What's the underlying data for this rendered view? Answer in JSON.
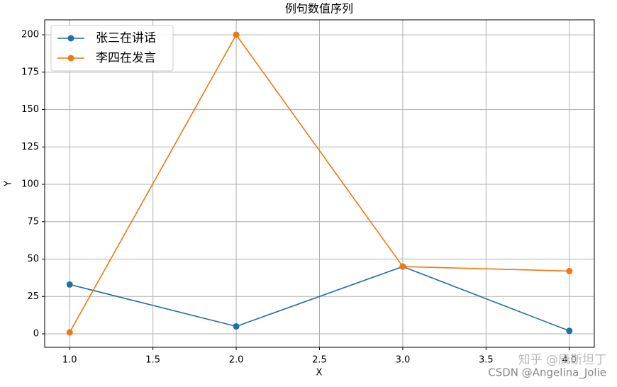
{
  "chart_data": {
    "type": "line",
    "title": "例句数值序列",
    "x_label": "X",
    "y_label": "Y",
    "x": [
      1,
      2,
      3,
      4
    ],
    "series": [
      {
        "name": "张三在讲话",
        "color": "#1f6fa8",
        "values": [
          33,
          5,
          45,
          2
        ]
      },
      {
        "name": "李四在发言",
        "color": "#ef7714",
        "values": [
          1,
          200,
          45,
          42
        ]
      }
    ],
    "xlim": [
      0.85,
      4.15
    ],
    "xticks": [
      {
        "value": 1,
        "label": "1.0"
      },
      {
        "value": 1.5,
        "label": "1.5"
      },
      {
        "value": 2,
        "label": "2.0"
      },
      {
        "value": 2.5,
        "label": "2.5"
      },
      {
        "value": 3,
        "label": "3.0"
      },
      {
        "value": 3.5,
        "label": "3.5"
      },
      {
        "value": 4,
        "label": "4.0"
      }
    ],
    "ylim": [
      -9,
      210
    ],
    "yticks": [
      0,
      25,
      50,
      75,
      100,
      125,
      150,
      175,
      200
    ],
    "grid": true,
    "legend": "upper-left",
    "annotations": [
      "知乎 @康斯坦丁",
      "CSDN @Angelina_Jolie"
    ]
  }
}
